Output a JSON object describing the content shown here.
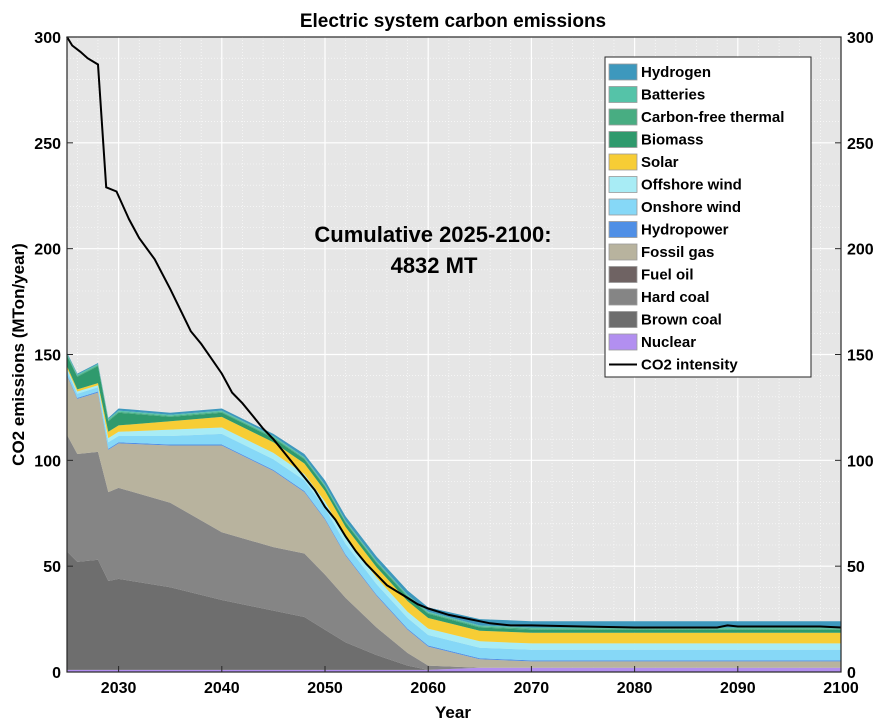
{
  "chart_data": {
    "type": "area",
    "title": "Electric system carbon emissions",
    "xlabel": "Year",
    "ylabel": "CO2 emissions (MTon/year)",
    "xlim": [
      2025,
      2100
    ],
    "ylim": [
      0,
      300
    ],
    "right_ylim": [
      0,
      300
    ],
    "grid": true,
    "legend_position": "top-right",
    "x_ticks": [
      2030,
      2040,
      2050,
      2060,
      2070,
      2080,
      2090,
      2100
    ],
    "y_ticks": [
      0,
      50,
      100,
      150,
      200,
      250,
      300
    ],
    "annotation": [
      "Cumulative 2025-2100:",
      "4832 MT"
    ],
    "x": [
      2025,
      2026,
      2028,
      2029,
      2030,
      2035,
      2040,
      2045,
      2048,
      2050,
      2052,
      2055,
      2058,
      2060,
      2065,
      2070,
      2075,
      2080,
      2085,
      2090,
      2095,
      2100
    ],
    "series": [
      {
        "name": "Nuclear",
        "color": "#b28ff0",
        "values": [
          1,
          1,
          1,
          1,
          1,
          1,
          1,
          1,
          1,
          1,
          1,
          1,
          1,
          1,
          2,
          2,
          2,
          2,
          2,
          2,
          2,
          2
        ]
      },
      {
        "name": "Brown coal",
        "color": "#6e6e6e",
        "values": [
          56,
          51,
          52,
          42,
          43,
          39,
          33,
          28,
          25,
          19,
          13,
          7,
          2,
          0,
          0,
          0,
          0,
          0,
          0,
          0,
          0,
          0
        ]
      },
      {
        "name": "Hard coal",
        "color": "#858585",
        "values": [
          55,
          51,
          51,
          42,
          43,
          40,
          32,
          30,
          30,
          26,
          21,
          13,
          6,
          2,
          0,
          0,
          0,
          0,
          0,
          0,
          0,
          0
        ]
      },
      {
        "name": "Fuel oil",
        "color": "#6f6363",
        "values": [
          0,
          0,
          0,
          0,
          0,
          0,
          0,
          0,
          0,
          0,
          0,
          0,
          0,
          0,
          0,
          0,
          0,
          0,
          0,
          0,
          0,
          0
        ]
      },
      {
        "name": "Fossil gas",
        "color": "#b8b39e",
        "values": [
          28,
          26,
          28,
          20,
          21,
          27,
          41,
          36,
          29,
          26,
          20,
          15,
          11,
          9,
          4,
          3,
          3,
          3,
          3,
          3,
          3,
          3
        ]
      },
      {
        "name": "Hydropower",
        "color": "#4f8fe6",
        "values": [
          0.5,
          0.5,
          0.5,
          0.5,
          0.5,
          0.5,
          0.5,
          0.5,
          0.5,
          0.5,
          0.5,
          0.5,
          0.5,
          0.5,
          0.5,
          0.5,
          0.5,
          0.5,
          0.5,
          0.5,
          0.5,
          0.5
        ]
      },
      {
        "name": "Onshore wind",
        "color": "#86d8f7",
        "values": [
          2,
          2,
          2,
          3,
          3,
          4,
          5,
          5,
          5,
          5,
          5,
          5,
          5,
          5,
          5,
          5,
          5,
          5,
          5,
          5,
          5,
          5
        ]
      },
      {
        "name": "Offshore wind",
        "color": "#a8ecf5",
        "values": [
          1,
          1,
          1,
          2,
          2,
          3,
          3,
          3,
          3,
          3,
          3,
          3,
          3,
          3,
          3,
          3,
          3,
          3,
          3,
          3,
          3,
          3
        ]
      },
      {
        "name": "Solar",
        "color": "#f7cd35",
        "values": [
          1,
          1,
          1,
          3,
          3,
          4,
          5,
          5,
          5,
          5,
          5,
          5,
          5,
          5,
          5,
          5,
          5,
          5,
          5,
          5,
          5,
          5
        ]
      },
      {
        "name": "Biomass",
        "color": "#2f9a6d",
        "values": [
          5,
          6,
          8,
          5,
          6,
          2,
          2,
          2,
          2,
          2,
          2,
          2,
          2,
          2,
          1.5,
          1.5,
          1.5,
          1.5,
          1.5,
          1.5,
          1.5,
          1.5
        ]
      },
      {
        "name": "Carbon-free thermal",
        "color": "#48ad82",
        "values": [
          0.5,
          0.5,
          0.5,
          0.5,
          0.5,
          0.5,
          0.5,
          0.5,
          0.5,
          0.5,
          0.5,
          0.5,
          0.5,
          0.5,
          0.5,
          0.5,
          0.5,
          0.5,
          0.5,
          0.5,
          0.5,
          0.5
        ]
      },
      {
        "name": "Batteries",
        "color": "#55c3a8",
        "values": [
          0.5,
          0.5,
          0.5,
          0.5,
          0.5,
          0.5,
          0.5,
          0.5,
          0.5,
          0.5,
          0.5,
          0.5,
          0.5,
          0.5,
          0.5,
          0.5,
          0.5,
          0.5,
          0.5,
          0.5,
          0.5,
          0.5
        ]
      },
      {
        "name": "Hydrogen",
        "color": "#3d98bd",
        "values": [
          0.5,
          0.5,
          0.5,
          0.5,
          1,
          1,
          1,
          1,
          1.5,
          2,
          2,
          2,
          2,
          2,
          3,
          3,
          3,
          3,
          3,
          3,
          3,
          3
        ]
      }
    ],
    "line": {
      "name": "CO2 intensity",
      "color": "#000000",
      "x": [
        2025,
        2025.5,
        2026.3,
        2027,
        2028,
        2028.8,
        2029.8,
        2031,
        2032,
        2033.5,
        2035,
        2036,
        2037,
        2038,
        2039,
        2040,
        2041,
        2042,
        2043,
        2044,
        2045,
        2046,
        2047,
        2048,
        2049,
        2050,
        2051,
        2052,
        2053,
        2054,
        2055,
        2056,
        2057,
        2058,
        2059,
        2060,
        2062,
        2064,
        2066,
        2068,
        2070,
        2075,
        2080,
        2085,
        2088,
        2089,
        2090,
        2092,
        2094,
        2096,
        2098,
        2100
      ],
      "values": [
        300,
        296,
        293,
        290,
        287,
        229,
        227,
        214,
        205,
        195,
        181,
        171,
        161,
        155,
        148,
        141,
        132,
        127,
        121,
        115,
        110,
        104,
        98,
        92,
        86,
        78,
        72,
        64,
        57,
        51,
        46,
        41,
        38,
        35,
        32,
        30,
        27,
        25,
        23,
        22,
        22,
        21.5,
        21,
        21,
        21,
        22,
        21.5,
        21.5,
        21.5,
        21.5,
        21.5,
        21
      ]
    }
  }
}
